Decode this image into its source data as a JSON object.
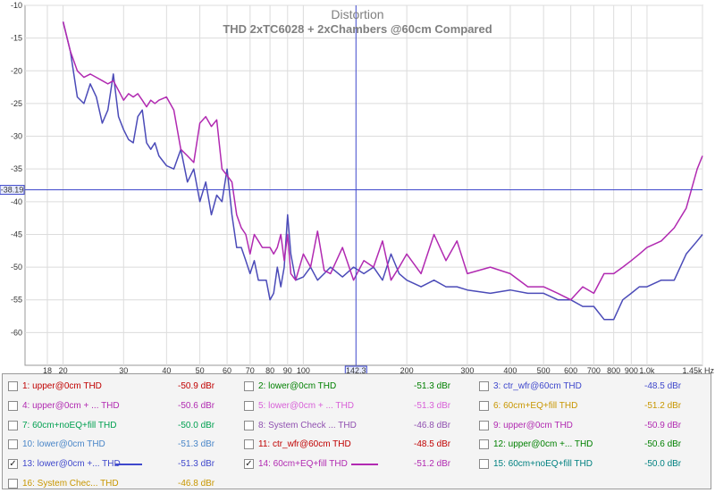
{
  "chart_data": {
    "type": "line",
    "title": "Distortion",
    "subtitle": "THD 2xTC6028 + 2xChambers @60cm Compared",
    "x_scale": "log",
    "xlim": [
      15.5,
      1450
    ],
    "ylim": [
      -65,
      -10
    ],
    "y_ticks": [
      -10,
      -15,
      -20,
      -25,
      -30,
      -35,
      -40,
      -45,
      -50,
      -55,
      -60
    ],
    "y_tick_labels": [
      "-10",
      "-15",
      "-20",
      "-25",
      "-30",
      "-35",
      "-40",
      "-45",
      "-50",
      "-55",
      "-60"
    ],
    "x_ticks": [
      18,
      20,
      30,
      40,
      50,
      60,
      70,
      80,
      90,
      100,
      200,
      300,
      400,
      500,
      600,
      700,
      800,
      900,
      1000,
      1450
    ],
    "x_tick_labels": [
      "18",
      "20",
      "30",
      "40",
      "50",
      "60",
      "70",
      "80",
      "90",
      "100",
      "200",
      "300",
      "400",
      "500",
      "600",
      "700",
      "800",
      "900",
      "1.0k",
      "1.45k Hz"
    ],
    "grid": true,
    "cursor": {
      "x": 142.3,
      "y": -38.19,
      "x_label": "142.3",
      "y_label": "-38.19",
      "color": "#3f48cc"
    },
    "series": [
      {
        "name": "13: lower@0cm +... THD",
        "color": "#4b4bb8",
        "x": [
          20,
          21,
          22,
          23,
          24,
          25,
          26,
          27,
          28,
          29,
          30,
          31,
          32,
          33,
          34,
          35,
          36,
          37,
          38,
          40,
          42,
          44,
          46,
          48,
          50,
          52,
          54,
          56,
          58,
          60,
          62,
          64,
          66,
          68,
          70,
          72,
          74,
          76,
          78,
          80,
          82,
          84,
          86,
          88,
          90,
          92,
          95,
          100,
          105,
          110,
          115,
          120,
          130,
          140,
          150,
          160,
          170,
          180,
          190,
          200,
          220,
          240,
          260,
          280,
          300,
          350,
          400,
          450,
          500,
          550,
          600,
          650,
          700,
          750,
          800,
          850,
          900,
          950,
          1000,
          1100,
          1200,
          1300,
          1400,
          1450
        ],
        "y": [
          -12.5,
          -17,
          -24,
          -25,
          -22,
          -24,
          -28,
          -26,
          -20.5,
          -27,
          -29,
          -30.5,
          -31,
          -27,
          -26,
          -31,
          -32,
          -31,
          -33,
          -34.5,
          -35,
          -32,
          -37,
          -35,
          -40,
          -37,
          -42,
          -39,
          -40,
          -35,
          -42,
          -47,
          -47,
          -49,
          -51,
          -49,
          -52,
          -52,
          -52,
          -55,
          -54,
          -50,
          -53,
          -50,
          -42,
          -48,
          -52,
          -51.5,
          -50,
          -52,
          -51,
          -50,
          -51.5,
          -50,
          -51,
          -50,
          -52,
          -48,
          -51,
          -52,
          -53,
          -52,
          -53,
          -53,
          -53.5,
          -54,
          -53.5,
          -54,
          -54,
          -55,
          -55,
          -56,
          -56,
          -58,
          -58,
          -55,
          -54,
          -53,
          -53,
          -52,
          -52,
          -48,
          -46,
          -45
        ]
      },
      {
        "name": "14: 60cm+EQ+fill THD",
        "color": "#b12ab1",
        "x": [
          20,
          21,
          22,
          23,
          24,
          25,
          26,
          27,
          28,
          29,
          30,
          31,
          32,
          33,
          34,
          35,
          36,
          37,
          38,
          40,
          42,
          44,
          46,
          48,
          50,
          52,
          54,
          56,
          58,
          60,
          62,
          64,
          66,
          68,
          70,
          72,
          74,
          76,
          78,
          80,
          82,
          84,
          86,
          88,
          90,
          92,
          95,
          100,
          105,
          110,
          115,
          120,
          130,
          140,
          150,
          160,
          170,
          180,
          190,
          200,
          220,
          240,
          260,
          280,
          300,
          350,
          400,
          450,
          500,
          550,
          600,
          650,
          700,
          750,
          800,
          850,
          900,
          950,
          1000,
          1100,
          1200,
          1300,
          1400,
          1450
        ],
        "y": [
          -12.5,
          -17,
          -20,
          -21,
          -20.5,
          -21,
          -21.5,
          -22,
          -21.5,
          -23,
          -24.5,
          -23.5,
          -24,
          -23.5,
          -24.5,
          -25.5,
          -24.5,
          -25,
          -24.5,
          -24,
          -26,
          -32,
          -33,
          -34,
          -28,
          -27,
          -28.5,
          -27.5,
          -35,
          -36,
          -37,
          -42,
          -44,
          -45,
          -48,
          -45,
          -46,
          -47,
          -47,
          -47,
          -48,
          -47,
          -45,
          -49,
          -45,
          -51,
          -52,
          -48,
          -50,
          -44.5,
          -50.5,
          -51,
          -47,
          -52,
          -49,
          -50,
          -46,
          -52,
          -50,
          -48,
          -51,
          -45,
          -49,
          -46,
          -51,
          -50,
          -51,
          -53,
          -53,
          -54,
          -55,
          -53,
          -54,
          -51,
          -51,
          -50,
          -49,
          -48,
          -47,
          -46,
          -44,
          -41,
          -35,
          -33
        ]
      }
    ]
  },
  "legend": {
    "items": [
      {
        "id": 1,
        "checked": false,
        "label": "1: upper@0cm THD",
        "value": "-50.9 dBr",
        "color": "#c00000"
      },
      {
        "id": 2,
        "checked": false,
        "label": "2: lower@0cm THD",
        "value": "-51.3 dBr",
        "color": "#008000"
      },
      {
        "id": 3,
        "checked": false,
        "label": "3: ctr_wfr@60cm THD",
        "value": "-48.5 dBr",
        "color": "#3f48cc"
      },
      {
        "id": 4,
        "checked": false,
        "label": "4: upper@0cm + ... THD",
        "value": "-50.6 dBr",
        "color": "#b12ab1"
      },
      {
        "id": 5,
        "checked": false,
        "label": "5: lower@0cm + ... THD",
        "value": "-51.3 dBr",
        "color": "#d85fd8"
      },
      {
        "id": 6,
        "checked": false,
        "label": "6: 60cm+EQ+fill THD",
        "value": "-51.2 dBr",
        "color": "#c89600"
      },
      {
        "id": 7,
        "checked": false,
        "label": "7: 60cm+noEQ+fill THD",
        "value": "-50.0 dBr",
        "color": "#00a050"
      },
      {
        "id": 8,
        "checked": false,
        "label": "8: System Check ... THD",
        "value": "-46.8 dBr",
        "color": "#9050b0"
      },
      {
        "id": 9,
        "checked": false,
        "label": "9: upper@0cm THD",
        "value": "-50.9 dBr",
        "color": "#b12ab1"
      },
      {
        "id": 10,
        "checked": false,
        "label": "10: lower@0cm THD",
        "value": "-51.3 dBr",
        "color": "#4a86c8"
      },
      {
        "id": 11,
        "checked": false,
        "label": "11: ctr_wfr@60cm THD",
        "value": "-48.5 dBr",
        "color": "#c00000"
      },
      {
        "id": 12,
        "checked": false,
        "label": "12: upper@0cm +... THD",
        "value": "-50.6 dBr",
        "color": "#008000"
      },
      {
        "id": 13,
        "checked": true,
        "label": "13: lower@0cm +... THD",
        "value": "-51.3 dBr",
        "color": "#3f48cc"
      },
      {
        "id": 14,
        "checked": true,
        "label": "14: 60cm+EQ+fill THD",
        "value": "-51.2 dBr",
        "color": "#b12ab1"
      },
      {
        "id": 15,
        "checked": false,
        "label": "15: 60cm+noEQ+fill THD",
        "value": "-50.0 dBr",
        "color": "#008080"
      },
      {
        "id": 16,
        "checked": false,
        "label": "16: System Chec... THD",
        "value": "-46.8 dBr",
        "color": "#c89600"
      }
    ],
    "checkmark": "✓"
  }
}
